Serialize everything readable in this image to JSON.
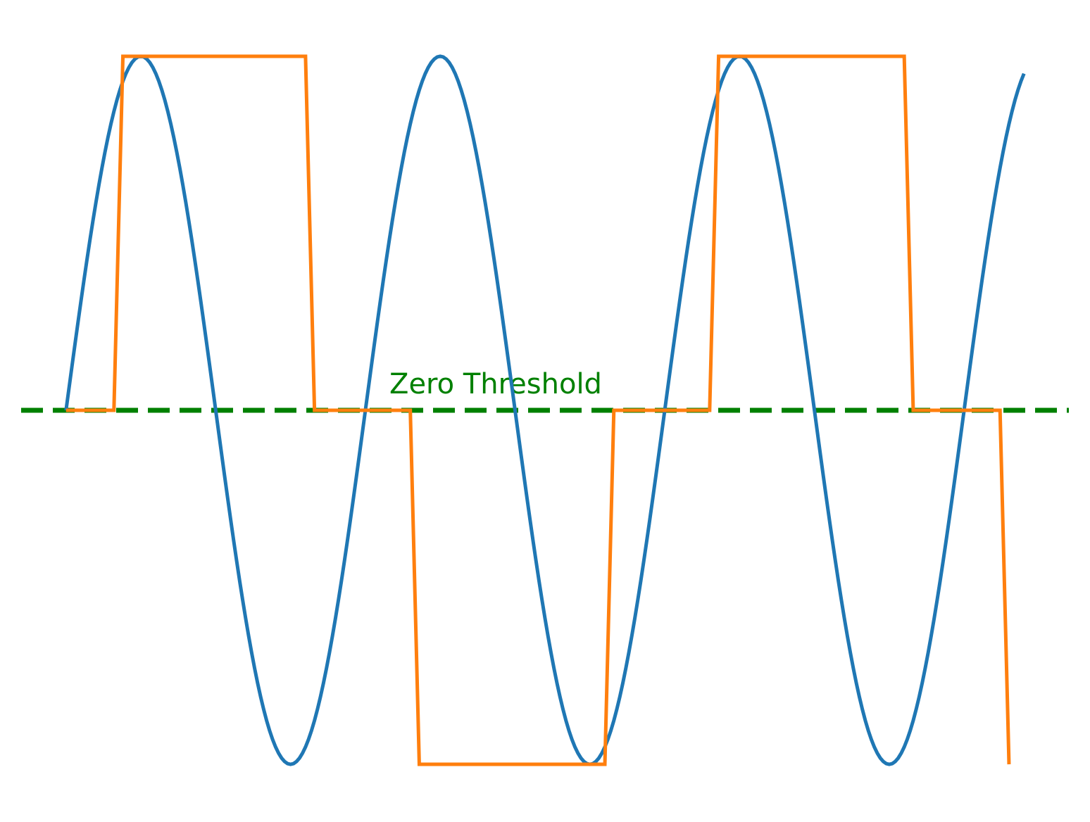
{
  "chart_data": {
    "type": "line",
    "title": "",
    "xlabel": "",
    "ylabel": "",
    "xlim": [
      -0.15,
      3.35
    ],
    "ylim": [
      -1.0,
      1.0
    ],
    "grid": false,
    "axes_visible": false,
    "series": [
      {
        "key": "sine",
        "color": "#1f77b4",
        "function": "sine",
        "amplitude": 1.0,
        "frequency": 1.0,
        "x_start": 0.0,
        "x_end": 3.2,
        "samples": 321
      },
      {
        "key": "quantized",
        "color": "#ff7f0e",
        "x": [
          0.0,
          0.16,
          0.19,
          0.8,
          0.83,
          1.15,
          1.18,
          1.8,
          1.83,
          2.15,
          2.18,
          2.8,
          2.83,
          3.12,
          3.15
        ],
        "y": [
          0,
          0,
          1,
          1,
          0,
          0,
          -1,
          -1,
          0,
          0,
          1,
          1,
          0,
          0,
          -1
        ]
      }
    ],
    "threshold": {
      "value": 0,
      "label": "Zero Threshold",
      "color": "#008000",
      "style": "dashed"
    }
  }
}
